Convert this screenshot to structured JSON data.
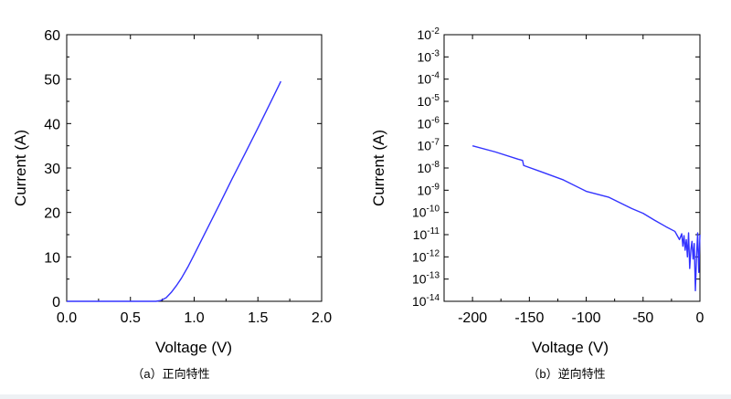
{
  "chart_data": [
    {
      "id": "forward",
      "type": "line",
      "caption": "（a）正向特性",
      "xlabel": "Voltage (V)",
      "ylabel": "Current (A)",
      "xlim": [
        0,
        2.0
      ],
      "ylim": [
        0,
        60
      ],
      "x_ticks": [
        "0.0",
        "0.5",
        "1.0",
        "1.5",
        "2.0"
      ],
      "x_tick_values": [
        0,
        0.5,
        1.0,
        1.5,
        2.0
      ],
      "y_ticks": [
        "0",
        "10",
        "20",
        "30",
        "40",
        "50",
        "60"
      ],
      "y_tick_values": [
        0,
        10,
        20,
        30,
        40,
        50,
        60
      ],
      "grid": false,
      "line_color": "#3333ff",
      "series": [
        {
          "x": [
            0,
            0.2,
            0.4,
            0.6,
            0.7,
            0.74,
            0.78,
            0.82,
            0.86,
            0.9,
            0.95,
            1.0,
            1.1,
            1.2,
            1.3,
            1.4,
            1.5,
            1.6,
            1.68
          ],
          "y": [
            0,
            0,
            0,
            0,
            0,
            0.2,
            0.8,
            2.0,
            3.5,
            5.2,
            7.7,
            10.5,
            16.2,
            21.9,
            27.7,
            33.3,
            39.0,
            44.8,
            49.5
          ]
        }
      ]
    },
    {
      "id": "reverse",
      "type": "line",
      "caption": "（b）逆向特性",
      "xlabel": "Voltage (V)",
      "ylabel": "Current (A)",
      "xlim": [
        -225,
        0
      ],
      "ylim": [
        -14,
        -2
      ],
      "y_scale": "log",
      "x_ticks": [
        "-200",
        "-150",
        "-100",
        "-50",
        "0"
      ],
      "x_tick_values": [
        -200,
        -150,
        -100,
        -50,
        0
      ],
      "y_tick_base": "10",
      "y_tick_exponents": [
        "-2",
        "-3",
        "-4",
        "-5",
        "-6",
        "-7",
        "-8",
        "-9",
        "-10",
        "-11",
        "-12",
        "-13",
        "-14"
      ],
      "grid": false,
      "line_color": "#3333ff",
      "series": [
        {
          "x": [
            -200,
            -180,
            -160,
            -156,
            -155,
            -140,
            -120,
            -100,
            -80,
            -60,
            -50,
            -40,
            -30,
            -22,
            -18,
            -16,
            -15,
            -14,
            -13,
            -12,
            -11,
            -10,
            -9,
            -8,
            -7,
            -6,
            -5,
            -4,
            -3,
            -2,
            -1,
            0
          ],
          "y": [
            1e-07,
            5.3e-08,
            2.5e-08,
            2.2e-08,
            1.3e-08,
            6.9e-09,
            2.9e-09,
            8.9e-10,
            4.8e-10,
            1.5e-10,
            9.1e-11,
            4.5e-11,
            2.3e-11,
            1.4e-11,
            6e-12,
            1.1e-11,
            3e-12,
            9e-12,
            2e-12,
            6e-12,
            1e-12,
            1.2e-11,
            3e-13,
            2e-12,
            5e-12,
            8e-13,
            4e-12,
            3e-14,
            1e-12,
            1.2e-11,
            2e-13,
            1e-11
          ]
        }
      ]
    }
  ]
}
